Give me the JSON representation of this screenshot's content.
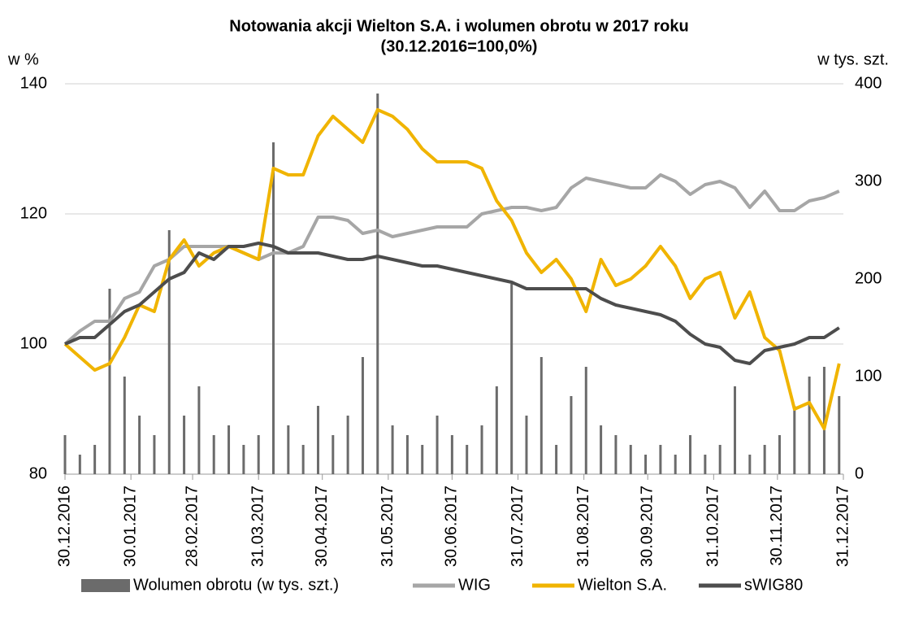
{
  "chart_data": {
    "type": "line",
    "title": "Notowania akcji Wielton S.A. i wolumen obrotu w 2017 roku",
    "subtitle": "(30.12.2016=100,0%)",
    "y_label": "w %",
    "y2_label": "w tys. szt.",
    "x": [
      "2016-12-30",
      "2017-01-06",
      "2017-01-13",
      "2017-01-20",
      "2017-01-27",
      "2017-02-03",
      "2017-02-10",
      "2017-02-17",
      "2017-02-24",
      "2017-03-03",
      "2017-03-10",
      "2017-03-17",
      "2017-03-24",
      "2017-03-31",
      "2017-04-07",
      "2017-04-14",
      "2017-04-21",
      "2017-04-28",
      "2017-05-05",
      "2017-05-12",
      "2017-05-19",
      "2017-05-26",
      "2017-06-02",
      "2017-06-09",
      "2017-06-16",
      "2017-06-23",
      "2017-06-30",
      "2017-07-07",
      "2017-07-14",
      "2017-07-21",
      "2017-07-28",
      "2017-08-04",
      "2017-08-11",
      "2017-08-18",
      "2017-08-25",
      "2017-09-01",
      "2017-09-08",
      "2017-09-15",
      "2017-09-22",
      "2017-09-29",
      "2017-10-06",
      "2017-10-13",
      "2017-10-20",
      "2017-10-27",
      "2017-11-03",
      "2017-11-10",
      "2017-11-17",
      "2017-11-24",
      "2017-12-01",
      "2017-12-08",
      "2017-12-15",
      "2017-12-22",
      "2017-12-29"
    ],
    "xlim": [
      "2016-12-30",
      "2017-12-31"
    ],
    "xticks": [
      {
        "value": "2016-12-30",
        "label": "30.12.2016"
      },
      {
        "value": "2017-01-30",
        "label": "30.01.2017"
      },
      {
        "value": "2017-02-28",
        "label": "28.02.2017"
      },
      {
        "value": "2017-03-31",
        "label": "31.03.2017"
      },
      {
        "value": "2017-04-30",
        "label": "30.04.2017"
      },
      {
        "value": "2017-05-31",
        "label": "31.05.2017"
      },
      {
        "value": "2017-06-30",
        "label": "30.06.2017"
      },
      {
        "value": "2017-07-31",
        "label": "31.07.2017"
      },
      {
        "value": "2017-08-31",
        "label": "31.08.2017"
      },
      {
        "value": "2017-09-30",
        "label": "30.09.2017"
      },
      {
        "value": "2017-10-31",
        "label": "31.10.2017"
      },
      {
        "value": "2017-11-30",
        "label": "30.11.2017"
      },
      {
        "value": "2017-12-31",
        "label": "31.12.2017"
      }
    ],
    "ylim": [
      80,
      140
    ],
    "yticks": [
      80,
      100,
      120,
      140
    ],
    "y2lim": [
      0,
      400
    ],
    "y2ticks": [
      0,
      100,
      200,
      300,
      400
    ],
    "grid": true,
    "legend": "bottom",
    "series": [
      {
        "name": "Wolumen obrotu (w tys. szt.)",
        "type": "bar",
        "axis": "y2",
        "color": "#6b6b6b",
        "values": [
          40,
          20,
          30,
          190,
          100,
          60,
          40,
          250,
          60,
          90,
          40,
          50,
          30,
          40,
          340,
          50,
          30,
          70,
          40,
          60,
          120,
          390,
          50,
          40,
          30,
          60,
          40,
          30,
          50,
          90,
          195,
          60,
          120,
          30,
          80,
          110,
          50,
          40,
          30,
          20,
          30,
          20,
          40,
          20,
          30,
          90,
          20,
          30,
          40,
          70,
          100,
          110,
          80
        ]
      },
      {
        "name": "WIG",
        "color": "#a6a6a6",
        "values": [
          100,
          102,
          103.5,
          103.5,
          107,
          108,
          112,
          113,
          115,
          115,
          115,
          115,
          114,
          113,
          114,
          114,
          115,
          119.5,
          119.5,
          119,
          117,
          117.5,
          116.5,
          117,
          117.5,
          118,
          118,
          118,
          120,
          120.5,
          121,
          121,
          120.5,
          121,
          124,
          125.5,
          125,
          124.5,
          124,
          124,
          126,
          125,
          123,
          124.5,
          125,
          124,
          121,
          123.5,
          120.5,
          120.5,
          122,
          122.5,
          123.5
        ]
      },
      {
        "name": "Wielton S.A.",
        "color": "#f0b400",
        "values": [
          100,
          98,
          96,
          97,
          101,
          106,
          105,
          113,
          116,
          112,
          114,
          115,
          114,
          113,
          127,
          126,
          126,
          132,
          135,
          133,
          131,
          136,
          135,
          133,
          130,
          128,
          128,
          128,
          127,
          122,
          119,
          114,
          111,
          113,
          110,
          105,
          113,
          109,
          110,
          112,
          115,
          112,
          107,
          110,
          111,
          104,
          108,
          101,
          99,
          90,
          91,
          87,
          97
        ]
      },
      {
        "name": "sWIG80",
        "color": "#4d4d4d",
        "values": [
          100,
          101,
          101,
          103,
          105,
          106,
          108,
          110,
          111,
          114,
          113,
          115,
          115,
          115.5,
          115,
          114,
          114,
          114,
          113.5,
          113,
          113,
          113.5,
          113,
          112.5,
          112,
          112,
          111.5,
          111,
          110.5,
          110,
          109.5,
          108.5,
          108.5,
          108.5,
          108.5,
          108.5,
          107,
          106,
          105.5,
          105,
          104.5,
          103.5,
          101.5,
          100,
          99.5,
          97.5,
          97,
          99,
          99.5,
          100,
          101,
          101,
          102.5
        ]
      }
    ]
  }
}
